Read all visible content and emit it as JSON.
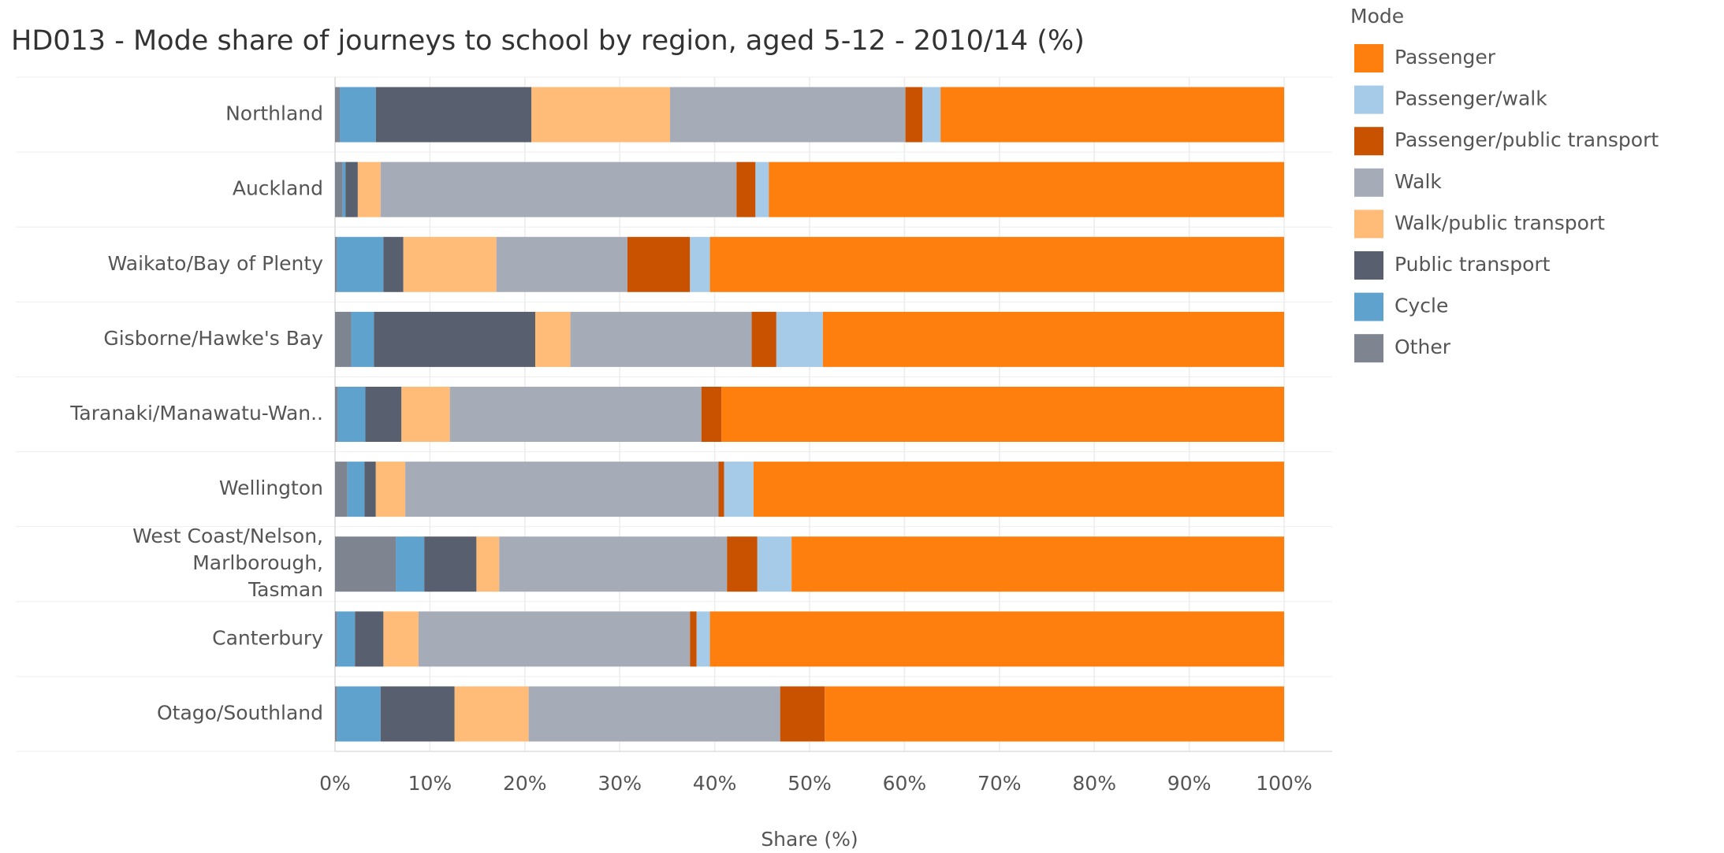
{
  "chart_data": {
    "type": "stacked_barh",
    "title": "HD013 - Mode share of journeys to school by region, aged 5-12 - 2010/14 (%)",
    "x_label": "Share (%)",
    "legend_title": "Mode",
    "legend": "right",
    "categories": [
      "Northland",
      "Auckland",
      "Waikato/Bay of Plenty",
      "Gisborne/Hawke's Bay",
      "Taranaki/Manawatu-Wan..",
      "Wellington",
      "West Coast/Nelson, Marlborough, Tasman",
      "Canterbury",
      "Otago/Southland"
    ],
    "series": [
      {
        "name": "Passenger",
        "color": "#ff7f0e",
        "values": [
          36.2,
          54.3,
          60.5,
          48.6,
          59.3,
          55.9,
          51.9,
          60.5,
          48.4
        ]
      },
      {
        "name": "Passenger/walk",
        "color": "#a6cbe8",
        "values": [
          1.9,
          1.4,
          2.1,
          4.9,
          0,
          3.1,
          3.6,
          1.4,
          0
        ]
      },
      {
        "name": "Passenger/public transport",
        "color": "#c85200",
        "values": [
          1.8,
          2.0,
          6.6,
          2.6,
          2.1,
          0.6,
          3.2,
          0.7,
          4.7
        ]
      },
      {
        "name": "Walk",
        "color": "#a5acb8",
        "values": [
          24.8,
          37.5,
          13.8,
          19.1,
          26.5,
          33.0,
          24.0,
          28.6,
          26.5
        ]
      },
      {
        "name": "Walk/public transport",
        "color": "#ffbc79",
        "values": [
          14.6,
          2.4,
          9.8,
          3.7,
          5.1,
          3.1,
          2.4,
          3.7,
          7.8
        ]
      },
      {
        "name": "Public transport",
        "color": "#585f6e",
        "values": [
          16.4,
          1.3,
          2.1,
          17.0,
          3.8,
          1.2,
          5.5,
          3.0,
          7.8
        ]
      },
      {
        "name": "Cycle",
        "color": "#5fa2ce",
        "values": [
          3.8,
          0.3,
          4.9,
          2.4,
          2.9,
          1.8,
          3.0,
          1.9,
          4.6
        ]
      },
      {
        "name": "Other",
        "color": "#7f8590",
        "values": [
          0.5,
          0.8,
          0.2,
          1.7,
          0.3,
          1.3,
          6.4,
          0.2,
          0.2
        ]
      }
    ],
    "xlim": [
      0,
      100
    ],
    "xticks": [
      {
        "value": 0,
        "label": "0%"
      },
      {
        "value": 10,
        "label": "10%"
      },
      {
        "value": 20,
        "label": "20%"
      },
      {
        "value": 30,
        "label": "30%"
      },
      {
        "value": 40,
        "label": "40%"
      },
      {
        "value": 50,
        "label": "50%"
      },
      {
        "value": 60,
        "label": "60%"
      },
      {
        "value": 70,
        "label": "70%"
      },
      {
        "value": 80,
        "label": "80%"
      },
      {
        "value": 90,
        "label": "90%"
      },
      {
        "value": 100,
        "label": "100%"
      }
    ],
    "grid": true
  }
}
